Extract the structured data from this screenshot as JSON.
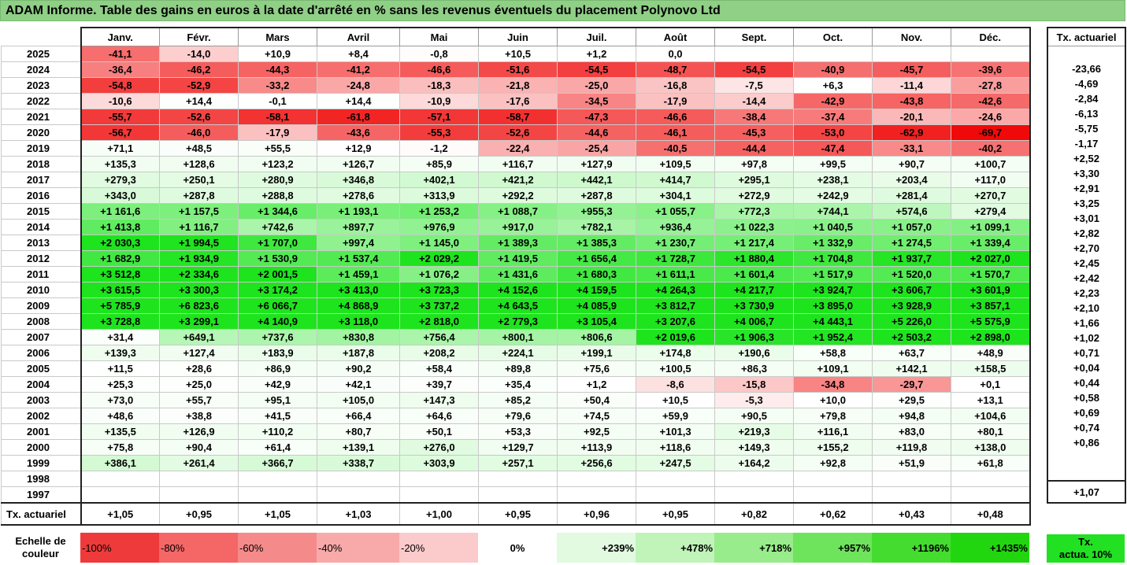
{
  "title": "ADAM Informe. Table des gains en euros à la date d'arrêté en % sans les revenus éventuels du placement Polynovo Ltd",
  "months": [
    "Janv.",
    "Févr.",
    "Mars",
    "Avril",
    "Mai",
    "Juin",
    "Juil.",
    "Août",
    "Sept.",
    "Oct.",
    "Nov.",
    "Déc."
  ],
  "tx_header": "Tx. actuariel",
  "colors": {
    "title_bg": "#8fcf86",
    "legend": [
      "#ee3a3a",
      "#f56666",
      "#f58a8a",
      "#f8aaaa",
      "#fbcaca",
      "#ffffff",
      "#e2fae0",
      "#c0f4b9",
      "#98ec8b",
      "#6ee45c",
      "#44dc2f",
      "#22d60f"
    ],
    "tx_legend": "#22e022"
  },
  "rows": [
    {
      "year": "2025",
      "values": [
        "-41,1",
        "-14,0",
        "+10,9",
        "+8,4",
        "-0,8",
        "+10,5",
        "+1,2",
        "0,0",
        "",
        "",
        "",
        ""
      ],
      "tx": ""
    },
    {
      "year": "2024",
      "values": [
        "-36,4",
        "-46,2",
        "-44,3",
        "-41,2",
        "-46,6",
        "-51,6",
        "-54,5",
        "-48,7",
        "-54,5",
        "-40,9",
        "-45,7",
        "-39,6"
      ],
      "tx": "-23,66"
    },
    {
      "year": "2023",
      "values": [
        "-54,8",
        "-52,9",
        "-33,2",
        "-24,8",
        "-18,3",
        "-21,8",
        "-25,0",
        "-16,8",
        "-7,5",
        "+6,3",
        "-11,4",
        "-27,8"
      ],
      "tx": "-4,69"
    },
    {
      "year": "2022",
      "values": [
        "-10,6",
        "+14,4",
        "-0,1",
        "+14,4",
        "-10,9",
        "-17,6",
        "-34,5",
        "-17,9",
        "-14,4",
        "-42,9",
        "-43,8",
        "-42,6"
      ],
      "tx": "-2,84"
    },
    {
      "year": "2021",
      "values": [
        "-55,7",
        "-52,6",
        "-58,1",
        "-61,8",
        "-57,1",
        "-58,7",
        "-47,3",
        "-46,6",
        "-38,4",
        "-37,4",
        "-20,1",
        "-24,6"
      ],
      "tx": "-6,13"
    },
    {
      "year": "2020",
      "values": [
        "-56,7",
        "-46,0",
        "-17,9",
        "-43,6",
        "-55,3",
        "-52,6",
        "-44,6",
        "-46,1",
        "-45,3",
        "-53,0",
        "-62,9",
        "-69,7"
      ],
      "tx": "-5,75"
    },
    {
      "year": "2019",
      "values": [
        "+71,1",
        "+48,5",
        "+55,5",
        "+12,9",
        "-1,2",
        "-22,4",
        "-25,4",
        "-40,5",
        "-44,4",
        "-47,4",
        "-33,1",
        "-40,2"
      ],
      "tx": "-1,17"
    },
    {
      "year": "2018",
      "values": [
        "+135,3",
        "+128,6",
        "+123,2",
        "+126,7",
        "+85,9",
        "+116,7",
        "+127,9",
        "+109,5",
        "+97,8",
        "+99,5",
        "+90,7",
        "+100,7"
      ],
      "tx": "+2,52"
    },
    {
      "year": "2017",
      "values": [
        "+279,3",
        "+250,1",
        "+280,9",
        "+346,8",
        "+402,1",
        "+421,2",
        "+442,1",
        "+414,7",
        "+295,1",
        "+238,1",
        "+203,4",
        "+117,0"
      ],
      "tx": "+3,30"
    },
    {
      "year": "2016",
      "values": [
        "+343,0",
        "+287,8",
        "+288,8",
        "+278,6",
        "+313,9",
        "+292,2",
        "+287,8",
        "+304,1",
        "+272,9",
        "+242,9",
        "+281,4",
        "+270,7"
      ],
      "tx": "+2,91"
    },
    {
      "year": "2015",
      "values": [
        "+1 161,6",
        "+1 157,5",
        "+1 344,6",
        "+1 193,1",
        "+1 253,2",
        "+1 088,7",
        "+955,3",
        "+1 055,7",
        "+772,3",
        "+744,1",
        "+574,6",
        "+279,4"
      ],
      "tx": "+3,25"
    },
    {
      "year": "2014",
      "values": [
        "+1 413,8",
        "+1 116,7",
        "+742,6",
        "+897,7",
        "+976,9",
        "+917,0",
        "+782,1",
        "+936,4",
        "+1 022,3",
        "+1 040,5",
        "+1 057,0",
        "+1 099,1"
      ],
      "tx": "+3,01"
    },
    {
      "year": "2013",
      "values": [
        "+2 030,3",
        "+1 994,5",
        "+1 707,0",
        "+997,4",
        "+1 145,0",
        "+1 389,3",
        "+1 385,3",
        "+1 230,7",
        "+1 217,4",
        "+1 332,9",
        "+1 274,5",
        "+1 339,4"
      ],
      "tx": "+2,82"
    },
    {
      "year": "2012",
      "values": [
        "+1 682,9",
        "+1 934,9",
        "+1 530,9",
        "+1 537,4",
        "+2 029,2",
        "+1 419,5",
        "+1 656,4",
        "+1 728,7",
        "+1 880,4",
        "+1 704,8",
        "+1 937,7",
        "+2 027,0"
      ],
      "tx": "+2,70"
    },
    {
      "year": "2011",
      "values": [
        "+3 512,8",
        "+2 334,6",
        "+2 001,5",
        "+1 459,1",
        "+1 076,2",
        "+1 431,6",
        "+1 680,3",
        "+1 611,1",
        "+1 601,4",
        "+1 517,9",
        "+1 520,0",
        "+1 570,7"
      ],
      "tx": "+2,45"
    },
    {
      "year": "2010",
      "values": [
        "+3 615,5",
        "+3 300,3",
        "+3 174,2",
        "+3 413,0",
        "+3 723,3",
        "+4 152,6",
        "+4 159,5",
        "+4 264,3",
        "+4 217,7",
        "+3 924,7",
        "+3 606,7",
        "+3 601,9"
      ],
      "tx": "+2,42"
    },
    {
      "year": "2009",
      "values": [
        "+5 785,9",
        "+6 823,6",
        "+6 066,7",
        "+4 868,9",
        "+3 737,2",
        "+4 643,5",
        "+4 085,9",
        "+3 812,7",
        "+3 730,9",
        "+3 895,0",
        "+3 928,9",
        "+3 857,1"
      ],
      "tx": "+2,23"
    },
    {
      "year": "2008",
      "values": [
        "+3 728,8",
        "+3 299,1",
        "+4 140,9",
        "+3 118,0",
        "+2 818,0",
        "+2 779,3",
        "+3 105,4",
        "+3 207,6",
        "+4 006,7",
        "+4 443,1",
        "+5 226,0",
        "+5 575,9"
      ],
      "tx": "+2,10"
    },
    {
      "year": "2007",
      "values": [
        "+31,4",
        "+649,1",
        "+737,6",
        "+830,8",
        "+756,4",
        "+800,1",
        "+806,6",
        "+2 019,6",
        "+1 906,3",
        "+1 952,4",
        "+2 503,2",
        "+2 898,0"
      ],
      "tx": "+1,66"
    },
    {
      "year": "2006",
      "values": [
        "+139,3",
        "+127,4",
        "+183,9",
        "+187,8",
        "+208,2",
        "+224,1",
        "+199,1",
        "+174,8",
        "+190,6",
        "+58,8",
        "+63,7",
        "+48,9"
      ],
      "tx": "+1,02"
    },
    {
      "year": "2005",
      "values": [
        "+11,5",
        "+28,6",
        "+86,9",
        "+90,2",
        "+58,4",
        "+89,8",
        "+75,6",
        "+100,5",
        "+86,3",
        "+109,1",
        "+142,1",
        "+158,5"
      ],
      "tx": "+0,71"
    },
    {
      "year": "2004",
      "values": [
        "+25,3",
        "+25,0",
        "+42,9",
        "+42,1",
        "+39,7",
        "+35,4",
        "+1,2",
        "-8,6",
        "-15,8",
        "-34,8",
        "-29,7",
        "+0,1"
      ],
      "tx": "+0,04"
    },
    {
      "year": "2003",
      "values": [
        "+73,0",
        "+55,7",
        "+95,1",
        "+105,0",
        "+147,3",
        "+85,2",
        "+50,4",
        "+10,5",
        "-5,3",
        "+10,0",
        "+29,5",
        "+13,1"
      ],
      "tx": "+0,44"
    },
    {
      "year": "2002",
      "values": [
        "+48,6",
        "+38,8",
        "+41,5",
        "+66,4",
        "+64,6",
        "+79,6",
        "+74,5",
        "+59,9",
        "+90,5",
        "+79,8",
        "+94,8",
        "+104,6"
      ],
      "tx": "+0,58"
    },
    {
      "year": "2001",
      "values": [
        "+135,5",
        "+126,9",
        "+110,2",
        "+80,7",
        "+50,1",
        "+53,3",
        "+92,5",
        "+101,3",
        "+219,3",
        "+116,1",
        "+83,0",
        "+80,1"
      ],
      "tx": "+0,69"
    },
    {
      "year": "2000",
      "values": [
        "+75,8",
        "+90,4",
        "+61,4",
        "+139,1",
        "+276,0",
        "+129,7",
        "+113,9",
        "+118,6",
        "+149,3",
        "+155,2",
        "+119,8",
        "+138,0"
      ],
      "tx": "+0,74"
    },
    {
      "year": "1999",
      "values": [
        "+386,1",
        "+261,4",
        "+366,7",
        "+338,7",
        "+303,9",
        "+257,1",
        "+256,6",
        "+247,5",
        "+164,2",
        "+92,8",
        "+51,9",
        "+61,8"
      ],
      "tx": "+0,86"
    },
    {
      "year": "1998",
      "values": [
        "",
        "",
        "",
        "",
        "",
        "",
        "",
        "",
        "",
        "",
        "",
        ""
      ],
      "tx": ""
    },
    {
      "year": "1997",
      "values": [
        "",
        "",
        "",
        "",
        "",
        "",
        "",
        "",
        "",
        "",
        "",
        ""
      ],
      "tx": ""
    }
  ],
  "avg_row": {
    "label": "Tx. actuariel",
    "values": [
      "+1,05",
      "+0,95",
      "+1,05",
      "+1,03",
      "+1,00",
      "+0,95",
      "+0,96",
      "+0,95",
      "+0,82",
      "+0,62",
      "+0,43",
      "+0,48"
    ],
    "tx": "+1,07"
  },
  "legend": {
    "label_line1": "Echelle de",
    "label_line2": "couleur",
    "items": [
      "-100%",
      "-80%",
      "-60%",
      "-40%",
      "-20%",
      "0%",
      "+239%",
      "+478%",
      "+718%",
      "+957%",
      "+1196%",
      "+1435%"
    ],
    "tx_line1": "Tx.",
    "tx_line2": "actua. 10%"
  }
}
